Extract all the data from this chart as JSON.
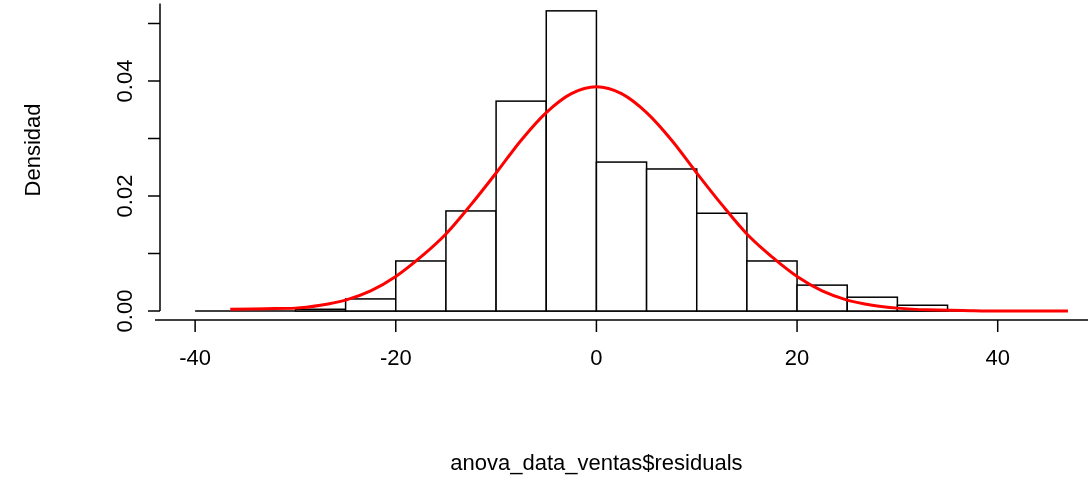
{
  "chart_data": {
    "type": "histogram",
    "xlabel": "anova_data_ventas$residuals",
    "ylabel": "Densidad",
    "bins": [
      -40,
      -35,
      -30,
      -25,
      -20,
      -15,
      -10,
      -5,
      0,
      5,
      10,
      15,
      20,
      25,
      30,
      35,
      40,
      45
    ],
    "values": [
      0,
      0,
      0.0003,
      0.0021,
      0.0087,
      0.0174,
      0.0365,
      0.0522,
      0.0259,
      0.0247,
      0.017,
      0.0087,
      0.0045,
      0.0024,
      0.001,
      0,
      0
    ],
    "color": "#ffffff",
    "series": [
      {
        "type": "line",
        "color": "#ff0000",
        "x": [
          -36.5,
          -33,
          -30,
          -27.5,
          -25,
          -22.5,
          -20,
          -17.5,
          -15,
          -12.5,
          -10,
          -7.5,
          -5,
          -2.5,
          0,
          2.5,
          5,
          7.5,
          10,
          12.5,
          15,
          17.5,
          20,
          22.5,
          25,
          27.5,
          30,
          33,
          36.5,
          40,
          47
        ],
        "values": [
          0.0003,
          0.0004,
          0.0005,
          0.001,
          0.0019,
          0.0035,
          0.006,
          0.0094,
          0.0134,
          0.0185,
          0.024,
          0.0297,
          0.0345,
          0.0378,
          0.039,
          0.0378,
          0.0345,
          0.0297,
          0.024,
          0.0185,
          0.0134,
          0.0094,
          0.006,
          0.0035,
          0.0019,
          0.001,
          0.0005,
          0.0002,
          0.0001,
          0,
          0
        ]
      }
    ],
    "xlim": [
      -44,
      49
    ],
    "xticks": [
      -40,
      -20,
      0,
      20,
      40
    ],
    "ylim": [
      0,
      0.0535
    ],
    "yticks": [
      {
        "value": 0,
        "label": "0.00"
      },
      {
        "value": 0.01,
        "label": null
      },
      {
        "value": 0.02,
        "label": "0.02"
      },
      {
        "value": 0.03,
        "label": null
      },
      {
        "value": 0.04,
        "label": "0.04"
      },
      {
        "value": 0.05,
        "label": null
      }
    ],
    "grid": false
  }
}
